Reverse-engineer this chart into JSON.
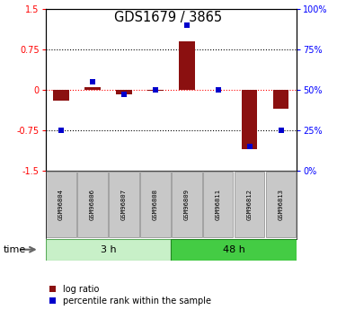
{
  "title": "GDS1679 / 3865",
  "samples": [
    "GSM96804",
    "GSM96806",
    "GSM96807",
    "GSM96808",
    "GSM96809",
    "GSM96811",
    "GSM96812",
    "GSM96813"
  ],
  "log_ratio": [
    -0.2,
    0.05,
    -0.08,
    -0.02,
    0.9,
    0.0,
    -1.1,
    -0.35
  ],
  "percentile_rank": [
    25,
    55,
    47,
    50,
    90,
    50,
    15,
    25
  ],
  "groups": [
    {
      "label": "3 h",
      "color": "#c8f0c8",
      "border": "#5aaa5a",
      "start": 0,
      "end": 4
    },
    {
      "label": "48 h",
      "color": "#44cc44",
      "border": "#228822",
      "start": 4,
      "end": 8
    }
  ],
  "bar_color_red": "#8B1010",
  "bar_color_blue": "#0000CC",
  "ylim_left": [
    -1.5,
    1.5
  ],
  "ylim_right": [
    0,
    100
  ],
  "yticks_left": [
    -1.5,
    -0.75,
    0.0,
    0.75,
    1.5
  ],
  "yticks_right": [
    0,
    25,
    50,
    75,
    100
  ],
  "ytick_labels_left": [
    "-1.5",
    "-0.75",
    "0",
    "0.75",
    "1.5"
  ],
  "ytick_labels_right": [
    "0%",
    "25%",
    "50%",
    "75%",
    "100%"
  ],
  "hlines_black": [
    0.75,
    -0.75
  ],
  "hline_red": 0.0,
  "legend_log_ratio": "log ratio",
  "legend_pct": "percentile rank within the sample",
  "time_label": "time",
  "bar_width": 0.5,
  "sample_box_color": "#c8c8c8",
  "sample_box_edge": "#888888"
}
